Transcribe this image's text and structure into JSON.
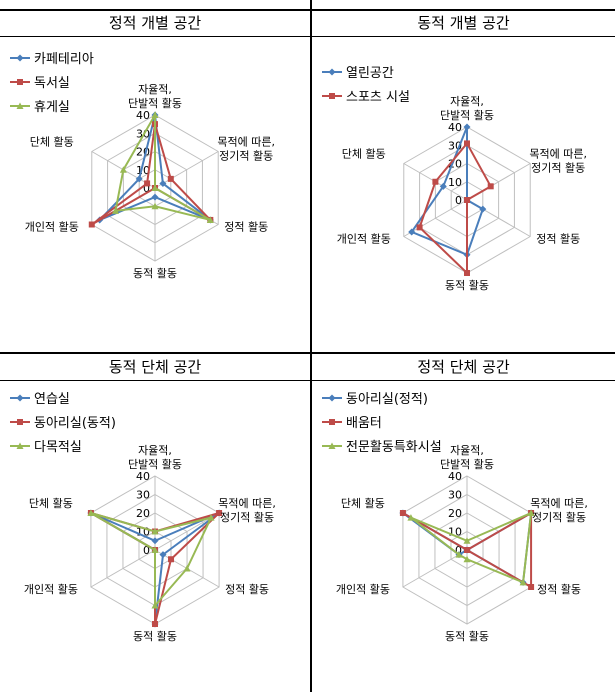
{
  "colors": {
    "blue": "#4a7ebb",
    "red": "#be4b48",
    "green": "#98b954",
    "grid": "#bfbfbf"
  },
  "panels": [
    {
      "title": "정적 개별 공간"
    },
    {
      "title": "동적 개별 공간"
    },
    {
      "title": "동적 단체 공간"
    },
    {
      "title": "정적 단체 공간"
    }
  ],
  "chart_data": [
    {
      "type": "radar",
      "title": "정적 개별 공간",
      "axes": [
        "자율적, 단발적 활동",
        "목적에 따른, 정기적 활동",
        "정적 활동",
        "동적 활동",
        "개인적 활동",
        "단체 활동"
      ],
      "ticks": [
        0,
        10,
        20,
        30,
        40
      ],
      "rlim": [
        0,
        40
      ],
      "legend_position": "top-left",
      "series": [
        {
          "name": "카페테리아",
          "color": "blue",
          "values": [
            40,
            5,
            35,
            5,
            35,
            10
          ]
        },
        {
          "name": "독서실",
          "color": "red",
          "values": [
            35,
            10,
            35,
            0,
            40,
            5
          ]
        },
        {
          "name": "휴게실",
          "color": "green",
          "values": [
            40,
            0,
            35,
            10,
            25,
            20
          ]
        }
      ]
    },
    {
      "type": "radar",
      "title": "동적 개별 공간",
      "axes": [
        "자율적, 단발적 활동",
        "목적에 따른, 정기적 활동",
        "정적 활동",
        "동적 활동",
        "개인적 활동",
        "단체 활동"
      ],
      "ticks": [
        0,
        10,
        20,
        30,
        40
      ],
      "rlim": [
        0,
        40
      ],
      "legend_position": "top-left",
      "series": [
        {
          "name": "열린공간",
          "color": "blue",
          "values": [
            40,
            0,
            10,
            30,
            35,
            15
          ]
        },
        {
          "name": "스포츠 시설",
          "color": "red",
          "values": [
            31,
            15,
            0,
            40,
            30,
            20
          ]
        }
      ]
    },
    {
      "type": "radar",
      "title": "동적 단체 공간",
      "axes": [
        "자율적, 단발적 활동",
        "목적에 따른, 정기적 활동",
        "정적 활동",
        "동적 활동",
        "개인적 활동",
        "단체 활동"
      ],
      "ticks": [
        0,
        10,
        20,
        30,
        40
      ],
      "rlim": [
        0,
        40
      ],
      "legend_position": "top-left",
      "series": [
        {
          "name": "연습실",
          "color": "blue",
          "values": [
            5,
            40,
            5,
            40,
            0,
            40
          ]
        },
        {
          "name": "동아리실(동적)",
          "color": "red",
          "values": [
            10,
            40,
            10,
            40,
            0,
            40
          ]
        },
        {
          "name": "다목적실",
          "color": "green",
          "values": [
            10,
            35,
            20,
            30,
            0,
            40
          ]
        }
      ]
    },
    {
      "type": "radar",
      "title": "정적 단체 공간",
      "axes": [
        "자율적, 단발적 활동",
        "목적에 따른, 정기적 활동",
        "정적 활동",
        "동적 활동",
        "개인적 활동",
        "단체 활동"
      ],
      "ticks": [
        0,
        10,
        20,
        30,
        40
      ],
      "rlim": [
        0,
        40
      ],
      "legend_position": "top-left",
      "series": [
        {
          "name": "동아리실(정적)",
          "color": "blue",
          "values": [
            0,
            40,
            35,
            0,
            5,
            40
          ]
        },
        {
          "name": "배움터",
          "color": "red",
          "values": [
            0,
            40,
            40,
            0,
            0,
            40
          ]
        },
        {
          "name": "전문활동특화시설",
          "color": "green",
          "values": [
            5,
            40,
            35,
            5,
            5,
            35
          ]
        }
      ]
    }
  ]
}
